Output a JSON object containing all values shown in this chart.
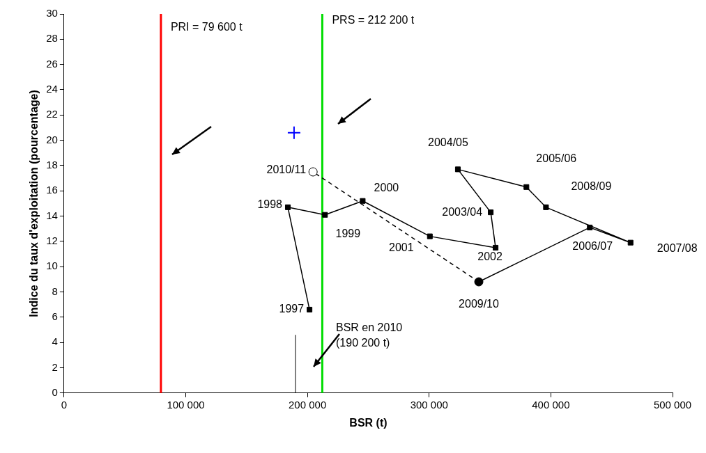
{
  "chart_data": {
    "type": "line",
    "xlabel": "BSR (t)",
    "ylabel": "Indice du taux d'exploitation (pourcentage)",
    "xlim": [
      0,
      500000
    ],
    "xticks": [
      {
        "value": 0,
        "label": "0"
      },
      {
        "value": 100000,
        "label": "100 000"
      },
      {
        "value": 200000,
        "label": "200 000"
      },
      {
        "value": 300000,
        "label": "300 000"
      },
      {
        "value": 400000,
        "label": "400 000"
      },
      {
        "value": 500000,
        "label": "500 000"
      }
    ],
    "ylim": [
      0,
      30
    ],
    "yticks": [
      0,
      2,
      4,
      6,
      8,
      10,
      12,
      14,
      16,
      18,
      20,
      22,
      24,
      26,
      28,
      30
    ],
    "grid": false,
    "legend": false,
    "series": [
      {
        "color": "#000000",
        "marker": "square",
        "line_style": "solid",
        "x": [
          201700,
          183900,
          214400,
          245400,
          300600,
          354600,
          350600,
          323600,
          379900,
          396000,
          465500,
          432000,
          340800
        ],
        "values": [
          6.6,
          14.7,
          14.1,
          15.2,
          12.4,
          11.5,
          14.3,
          17.7,
          16.3,
          14.7,
          11.9,
          13.1,
          8.8
        ]
      },
      {
        "type": "line",
        "color": "#000000",
        "marker": "circle",
        "line_style": "dashed",
        "x": [
          340800,
          204600
        ],
        "values": [
          8.8,
          17.5
        ]
      },
      {
        "type": "scatter",
        "color": "#0000ff",
        "marker": "cross",
        "x": [
          189000
        ],
        "values": [
          20.6
        ]
      }
    ],
    "ref_lines": [
      {
        "axis": "x",
        "value": 79600,
        "label": "PRI = 79 600 t",
        "color": "#ff0000"
      },
      {
        "axis": "x",
        "value": 212200,
        "label": "PRS = 212 200 t",
        "color": "#00dd00"
      },
      {
        "axis": "x",
        "value": 190200,
        "label": "BSR en 2010\n(190 200 t)",
        "color": "#000000"
      }
    ],
    "annotations": [
      {
        "text": "1997",
        "x": 201700,
        "y": 6.6
      },
      {
        "text": "1998",
        "x": 183900,
        "y": 14.7
      },
      {
        "text": "1999",
        "x": 214400,
        "y": 14.1
      },
      {
        "text": "2000",
        "x": 245400,
        "y": 15.2
      },
      {
        "text": "2001",
        "x": 300600,
        "y": 12.4
      },
      {
        "text": "2002",
        "x": 354600,
        "y": 11.5
      },
      {
        "text": "2003/04",
        "x": 350600,
        "y": 14.3
      },
      {
        "text": "2004/05",
        "x": 323600,
        "y": 17.7
      },
      {
        "text": "2005/06",
        "x": 379900,
        "y": 16.3
      },
      {
        "text": "2008/09",
        "x": 396000,
        "y": 14.7
      },
      {
        "text": "2007/08",
        "x": 465500,
        "y": 11.9
      },
      {
        "text": "2006/07",
        "x": 432000,
        "y": 13.1
      },
      {
        "text": "2009/10",
        "x": 340800,
        "y": 8.8
      },
      {
        "text": "2010/11",
        "x": 204600,
        "y": 17.5
      }
    ]
  }
}
